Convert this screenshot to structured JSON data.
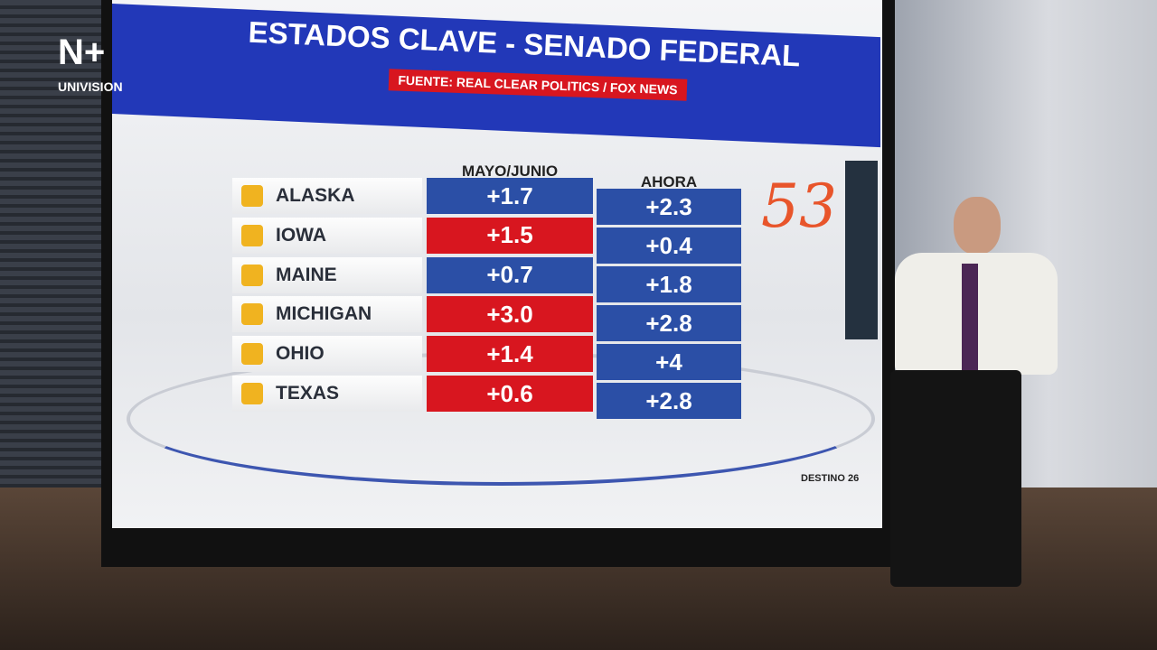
{
  "logo": {
    "brand": "UNIVISION"
  },
  "header": {
    "title": "ESTADOS CLAVE - SENADO FEDERAL",
    "source": "FUENTE: REAL CLEAR POLITICS  / FOX NEWS"
  },
  "table": {
    "columns": [
      "MAYO/JUNIO",
      "AHORA"
    ],
    "rows": [
      {
        "state": "ALASKA",
        "cells": [
          {
            "text": "+1.7",
            "color": "#2b4fa6"
          },
          {
            "text": "+2.3",
            "color": "#2b4fa6"
          }
        ]
      },
      {
        "state": "IOWA",
        "cells": [
          {
            "text": "+1.5",
            "color": "#d8161f"
          },
          {
            "text": "+0.4",
            "color": "#2b4fa6"
          }
        ]
      },
      {
        "state": "MAINE",
        "cells": [
          {
            "text": "+0.7",
            "color": "#2b4fa6"
          },
          {
            "text": "+1.8",
            "color": "#2b4fa6"
          }
        ]
      },
      {
        "state": "MICHIGAN",
        "cells": [
          {
            "text": "+3.0",
            "color": "#d8161f"
          },
          {
            "text": "+2.8",
            "color": "#2b4fa6"
          }
        ]
      },
      {
        "state": "OHIO",
        "cells": [
          {
            "text": "+1.4",
            "color": "#d8161f"
          },
          {
            "text": "+4",
            "color": "#2b4fa6"
          }
        ]
      },
      {
        "state": "TEXAS",
        "cells": [
          {
            "text": "+0.6",
            "color": "#d8161f"
          },
          {
            "text": "+2.8",
            "color": "#2b4fa6"
          }
        ]
      }
    ]
  },
  "annotation": "53",
  "footer_logo": "DESTINO 26"
}
